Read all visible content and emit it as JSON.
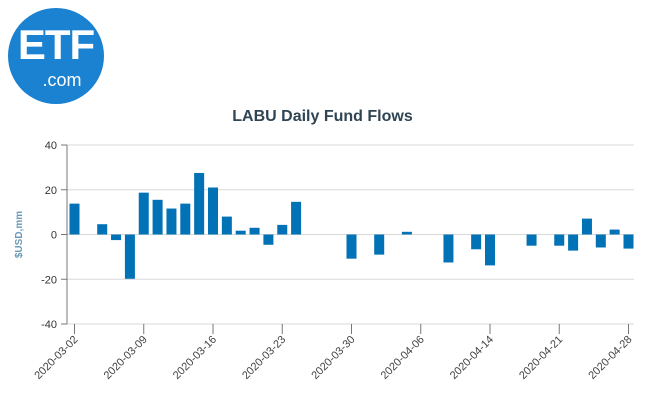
{
  "logo": {
    "main": "ETF",
    "sub": ".com",
    "color": "#1a82d1"
  },
  "chart_data": {
    "type": "bar",
    "title": "LABU Daily Fund Flows",
    "xlabel": "",
    "ylabel": "$USD,mm",
    "ylim": [
      -40,
      40
    ],
    "yticks": [
      40,
      20,
      0,
      -20,
      -40
    ],
    "grid": true,
    "bar_color": "#0072b5",
    "xtick_labels": [
      "2020-03-02",
      "2020-03-09",
      "2020-03-16",
      "2020-03-23",
      "2020-03-30",
      "2020-04-06",
      "2020-04-14",
      "2020-04-21",
      "2020-04-28"
    ],
    "categories": [
      "2020-03-02",
      "2020-03-03",
      "2020-03-04",
      "2020-03-05",
      "2020-03-06",
      "2020-03-09",
      "2020-03-10",
      "2020-03-11",
      "2020-03-12",
      "2020-03-13",
      "2020-03-16",
      "2020-03-17",
      "2020-03-18",
      "2020-03-19",
      "2020-03-20",
      "2020-03-23",
      "2020-03-24",
      "2020-03-25",
      "2020-03-26",
      "2020-03-27",
      "2020-03-30",
      "2020-03-31",
      "2020-04-01",
      "2020-04-02",
      "2020-04-03",
      "2020-04-06",
      "2020-04-07",
      "2020-04-08",
      "2020-04-09",
      "2020-04-13",
      "2020-04-14",
      "2020-04-15",
      "2020-04-16",
      "2020-04-17",
      "2020-04-20",
      "2020-04-21",
      "2020-04-22",
      "2020-04-23",
      "2020-04-24",
      "2020-04-27",
      "2020-04-28"
    ],
    "values": [
      13.8,
      0,
      4.6,
      -2.5,
      -19.8,
      18.7,
      15.5,
      11.6,
      13.8,
      27.5,
      21.0,
      8.0,
      1.7,
      3.0,
      -4.6,
      4.3,
      14.6,
      0,
      0,
      0,
      -10.8,
      0,
      -9.0,
      0,
      1.2,
      0,
      0,
      -12.5,
      0,
      -6.6,
      -13.8,
      0,
      0,
      -5.0,
      0,
      -5.0,
      -7.2,
      7.1,
      -5.8,
      2.2,
      -6.3
    ]
  }
}
